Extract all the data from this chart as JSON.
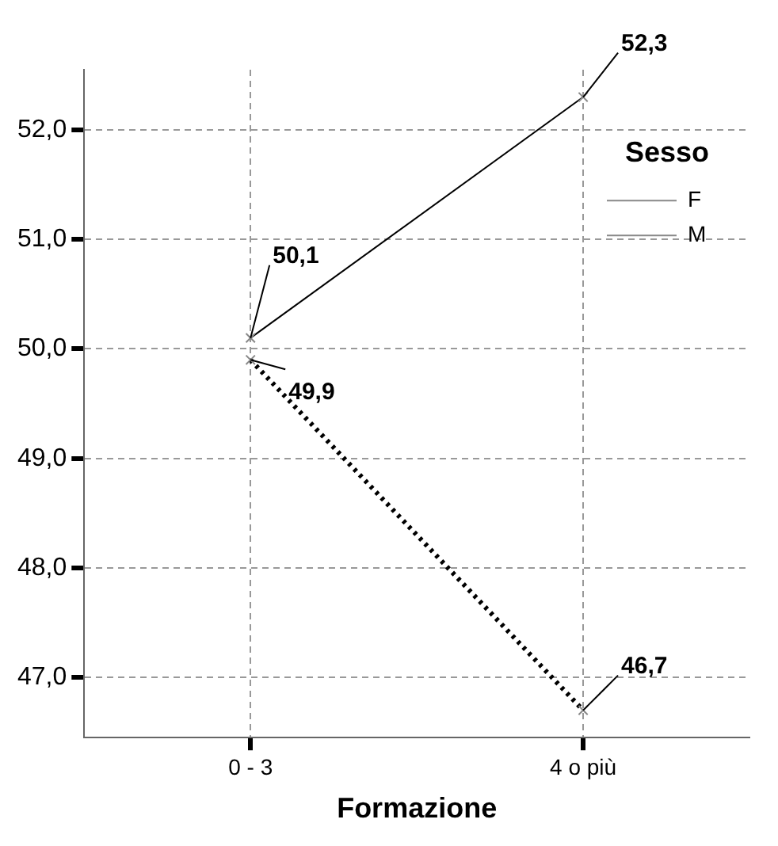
{
  "chart_data": {
    "type": "line",
    "xlabel": "Formazione",
    "legend_title": "Sesso",
    "categories": [
      "0 - 3",
      "4 o più"
    ],
    "series": [
      {
        "name": "F",
        "color": "#000000",
        "values": [
          50.1,
          52.3
        ],
        "value_labels": [
          "50,1",
          "52,3"
        ],
        "line_style": "solid"
      },
      {
        "name": "M",
        "color": "#000000",
        "values": [
          49.9,
          46.7
        ],
        "value_labels": [
          "49,9",
          "46,7"
        ],
        "line_style": "dotted"
      }
    ],
    "ylim": [
      46.45,
      52.55
    ],
    "yticks": [
      {
        "value": 47,
        "label": "47,0"
      },
      {
        "value": 48,
        "label": "48,0"
      },
      {
        "value": 49,
        "label": "49,0"
      },
      {
        "value": 50,
        "label": "50,0"
      },
      {
        "value": 51,
        "label": "51,0"
      },
      {
        "value": 52,
        "label": "52,0"
      }
    ],
    "grid": true,
    "legend": "top right",
    "marker": "cross"
  }
}
